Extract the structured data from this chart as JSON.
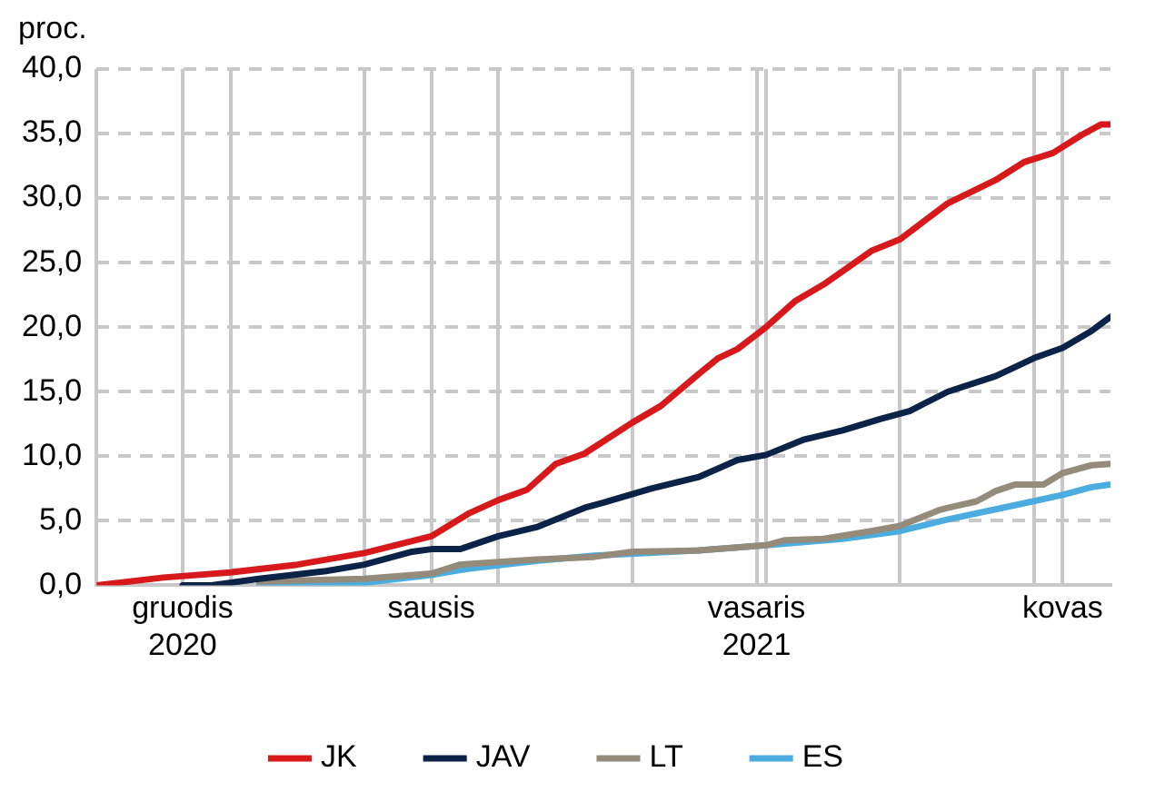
{
  "chart_data": {
    "type": "line",
    "ylabel": "proc.",
    "xlim": [
      "2020-12-08",
      "2021-03-24"
    ],
    "xticks": [
      {
        "value": "2020-12-08",
        "label": null
      },
      {
        "value": "2020-12-17",
        "label": "gruodis\n2020"
      },
      {
        "value": "2020-12-22",
        "label": null
      },
      {
        "value": "2021-01-05",
        "label": null
      },
      {
        "value": "2021-01-12",
        "label": "sausis"
      },
      {
        "value": "2021-01-19",
        "label": null
      },
      {
        "value": "2021-02-02",
        "label": null
      },
      {
        "value": "2021-02-15",
        "label": "vasaris\n2021"
      },
      {
        "value": "2021-02-16",
        "label": null
      },
      {
        "value": "2021-03-02",
        "label": null
      },
      {
        "value": "2021-03-16",
        "label": null
      },
      {
        "value": "2021-03-19",
        "label": "kovas"
      }
    ],
    "ylim": [
      0,
      40
    ],
    "yticks": [
      {
        "value": 0,
        "label": "0,0"
      },
      {
        "value": 5,
        "label": "5,0"
      },
      {
        "value": 10,
        "label": "10,0"
      },
      {
        "value": 15,
        "label": "15,0"
      },
      {
        "value": 20,
        "label": "20,0"
      },
      {
        "value": 25,
        "label": "25,0"
      },
      {
        "value": 30,
        "label": "30,0"
      },
      {
        "value": 35,
        "label": "35,0"
      },
      {
        "value": 40,
        "label": "40,0"
      }
    ],
    "grid": true,
    "legend": "bottom",
    "line_style": "solid",
    "series": [
      {
        "name": "JK",
        "color": "#d7191c",
        "x": [
          "2020-12-08",
          "2020-12-15",
          "2020-12-22",
          "2020-12-29",
          "2021-01-05",
          "2021-01-12",
          "2021-01-16",
          "2021-01-19",
          "2021-01-22",
          "2021-01-25",
          "2021-01-28",
          "2021-02-02",
          "2021-02-05",
          "2021-02-09",
          "2021-02-11",
          "2021-02-13",
          "2021-02-16",
          "2021-02-19",
          "2021-02-22",
          "2021-02-27",
          "2021-03-02",
          "2021-03-07",
          "2021-03-12",
          "2021-03-15",
          "2021-03-18",
          "2021-03-21",
          "2021-03-23",
          "2021-03-24"
        ],
        "values": [
          0,
          0.6,
          1.0,
          1.6,
          2.5,
          3.8,
          5.6,
          6.6,
          7.4,
          9.4,
          10.2,
          12.6,
          13.9,
          16.4,
          17.6,
          18.3,
          20.0,
          22.0,
          23.3,
          25.9,
          26.8,
          29.6,
          31.4,
          32.8,
          33.5,
          34.9,
          35.7,
          35.7
        ]
      },
      {
        "name": "JAV",
        "color": "#0b2346",
        "x": [
          "2020-12-17",
          "2020-12-20",
          "2020-12-25",
          "2021-01-01",
          "2021-01-05",
          "2021-01-10",
          "2021-01-12",
          "2021-01-15",
          "2021-01-19",
          "2021-01-23",
          "2021-01-28",
          "2021-01-30",
          "2021-02-04",
          "2021-02-09",
          "2021-02-13",
          "2021-02-16",
          "2021-02-20",
          "2021-02-24",
          "2021-02-28",
          "2021-03-03",
          "2021-03-07",
          "2021-03-12",
          "2021-03-16",
          "2021-03-19",
          "2021-03-22",
          "2021-03-24"
        ],
        "values": [
          0,
          0,
          0.5,
          1.1,
          1.6,
          2.6,
          2.8,
          2.8,
          3.8,
          4.5,
          6.0,
          6.4,
          7.5,
          8.4,
          9.7,
          10.1,
          11.3,
          12.0,
          12.9,
          13.5,
          15.0,
          16.2,
          17.6,
          18.4,
          19.7,
          20.8
        ]
      },
      {
        "name": "LT",
        "color": "#958b7b",
        "x": [
          "2020-12-25",
          "2021-01-05",
          "2021-01-12",
          "2021-01-15",
          "2021-01-19",
          "2021-01-23",
          "2021-01-29",
          "2021-02-02",
          "2021-02-09",
          "2021-02-16",
          "2021-02-18",
          "2021-02-22",
          "2021-02-27",
          "2021-03-02",
          "2021-03-06",
          "2021-03-07",
          "2021-03-10",
          "2021-03-12",
          "2021-03-14",
          "2021-03-17",
          "2021-03-19",
          "2021-03-22",
          "2021-03-24"
        ],
        "values": [
          0.3,
          0.5,
          0.9,
          1.6,
          1.8,
          2.0,
          2.2,
          2.6,
          2.7,
          3.1,
          3.5,
          3.6,
          4.2,
          4.6,
          5.8,
          6.0,
          6.5,
          7.3,
          7.8,
          7.8,
          8.7,
          9.3,
          9.4
        ]
      },
      {
        "name": "ES",
        "color": "#4bace0",
        "x": [
          "2020-12-25",
          "2020-12-31",
          "2021-01-05",
          "2021-01-12",
          "2021-01-16",
          "2021-01-23",
          "2021-01-29",
          "2021-02-09",
          "2021-02-16",
          "2021-02-24",
          "2021-03-02",
          "2021-03-07",
          "2021-03-14",
          "2021-03-19",
          "2021-03-22",
          "2021-03-24"
        ],
        "values": [
          0,
          0,
          0.2,
          0.8,
          1.3,
          1.9,
          2.3,
          2.7,
          3.1,
          3.6,
          4.2,
          5.1,
          6.2,
          7.0,
          7.6,
          7.8
        ]
      }
    ]
  }
}
